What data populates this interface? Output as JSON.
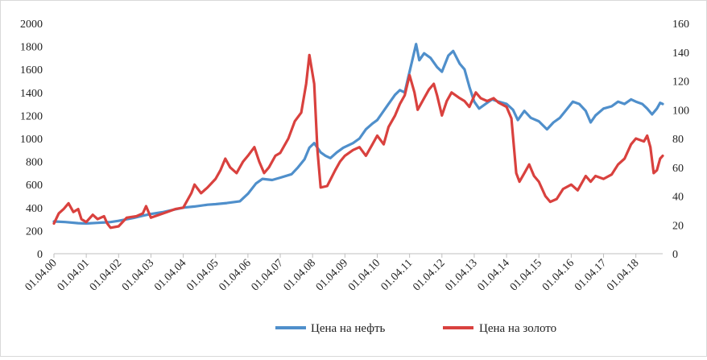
{
  "chart_data": {
    "type": "line",
    "title": "",
    "xlabel": "",
    "ylabel": "",
    "y_left": {
      "min": 0,
      "max": 2000,
      "ticks": [
        "0",
        "200",
        "400",
        "600",
        "800",
        "1000",
        "1200",
        "1400",
        "1600",
        "1800",
        "2000"
      ]
    },
    "y_right": {
      "min": 0,
      "max": 160,
      "ticks": [
        "0",
        "20",
        "40",
        "60",
        "80",
        "100",
        "120",
        "140",
        "160"
      ]
    },
    "x_range": [
      2000.25,
      2019.08
    ],
    "x_ticks": [
      {
        "x": 2000.25,
        "label": "01.04.00"
      },
      {
        "x": 2001.25,
        "label": "01.04.01"
      },
      {
        "x": 2002.25,
        "label": "01.04.02"
      },
      {
        "x": 2003.25,
        "label": "01.04.03"
      },
      {
        "x": 2004.25,
        "label": "01.04.04"
      },
      {
        "x": 2005.25,
        "label": "01.04.05"
      },
      {
        "x": 2006.25,
        "label": "01.04.06"
      },
      {
        "x": 2007.25,
        "label": "01.04.07"
      },
      {
        "x": 2008.25,
        "label": "01.04.08"
      },
      {
        "x": 2009.25,
        "label": "01.04.09"
      },
      {
        "x": 2010.25,
        "label": "01.04.10"
      },
      {
        "x": 2011.25,
        "label": "01.04.11"
      },
      {
        "x": 2012.25,
        "label": "01.04.12"
      },
      {
        "x": 2013.25,
        "label": "01.04.13"
      },
      {
        "x": 2014.25,
        "label": "01.04.14"
      },
      {
        "x": 2015.25,
        "label": "01.04.15"
      },
      {
        "x": 2016.25,
        "label": "01.04.16"
      },
      {
        "x": 2017.25,
        "label": "01.04.17"
      },
      {
        "x": 2018.25,
        "label": "01.04.18"
      }
    ],
    "grid": false,
    "legend_position": "bottom",
    "series": [
      {
        "name": "Цена на нефть",
        "axis": "left",
        "color": "#4f8fcb",
        "points": [
          [
            2000.25,
            280
          ],
          [
            2000.6,
            275
          ],
          [
            2001.0,
            265
          ],
          [
            2001.25,
            262
          ],
          [
            2001.6,
            268
          ],
          [
            2002.0,
            275
          ],
          [
            2002.25,
            285
          ],
          [
            2002.7,
            310
          ],
          [
            2003.0,
            330
          ],
          [
            2003.25,
            345
          ],
          [
            2003.6,
            360
          ],
          [
            2004.0,
            385
          ],
          [
            2004.25,
            400
          ],
          [
            2004.6,
            410
          ],
          [
            2005.0,
            425
          ],
          [
            2005.25,
            430
          ],
          [
            2005.6,
            440
          ],
          [
            2006.0,
            455
          ],
          [
            2006.25,
            520
          ],
          [
            2006.5,
            610
          ],
          [
            2006.7,
            650
          ],
          [
            2007.0,
            640
          ],
          [
            2007.25,
            660
          ],
          [
            2007.6,
            690
          ],
          [
            2007.8,
            750
          ],
          [
            2008.0,
            820
          ],
          [
            2008.15,
            920
          ],
          [
            2008.3,
            960
          ],
          [
            2008.5,
            880
          ],
          [
            2008.65,
            850
          ],
          [
            2008.8,
            830
          ],
          [
            2009.0,
            880
          ],
          [
            2009.2,
            920
          ],
          [
            2009.5,
            960
          ],
          [
            2009.7,
            1000
          ],
          [
            2009.9,
            1080
          ],
          [
            2010.1,
            1130
          ],
          [
            2010.25,
            1160
          ],
          [
            2010.4,
            1220
          ],
          [
            2010.6,
            1300
          ],
          [
            2010.8,
            1380
          ],
          [
            2010.95,
            1420
          ],
          [
            2011.1,
            1400
          ],
          [
            2011.2,
            1520
          ],
          [
            2011.35,
            1700
          ],
          [
            2011.45,
            1820
          ],
          [
            2011.55,
            1680
          ],
          [
            2011.7,
            1740
          ],
          [
            2011.9,
            1700
          ],
          [
            2012.1,
            1620
          ],
          [
            2012.25,
            1580
          ],
          [
            2012.45,
            1720
          ],
          [
            2012.6,
            1760
          ],
          [
            2012.8,
            1650
          ],
          [
            2012.95,
            1600
          ],
          [
            2013.1,
            1450
          ],
          [
            2013.25,
            1320
          ],
          [
            2013.4,
            1260
          ],
          [
            2013.6,
            1300
          ],
          [
            2013.8,
            1340
          ],
          [
            2014.0,
            1320
          ],
          [
            2014.25,
            1300
          ],
          [
            2014.45,
            1250
          ],
          [
            2014.6,
            1160
          ],
          [
            2014.8,
            1240
          ],
          [
            2015.0,
            1180
          ],
          [
            2015.25,
            1150
          ],
          [
            2015.5,
            1080
          ],
          [
            2015.7,
            1140
          ],
          [
            2015.9,
            1180
          ],
          [
            2016.1,
            1250
          ],
          [
            2016.3,
            1320
          ],
          [
            2016.5,
            1300
          ],
          [
            2016.7,
            1240
          ],
          [
            2016.85,
            1140
          ],
          [
            2017.0,
            1200
          ],
          [
            2017.25,
            1260
          ],
          [
            2017.5,
            1280
          ],
          [
            2017.7,
            1320
          ],
          [
            2017.9,
            1300
          ],
          [
            2018.1,
            1340
          ],
          [
            2018.25,
            1320
          ],
          [
            2018.45,
            1300
          ],
          [
            2018.6,
            1260
          ],
          [
            2018.75,
            1210
          ],
          [
            2018.9,
            1260
          ],
          [
            2019.0,
            1310
          ],
          [
            2019.08,
            1300
          ]
        ]
      },
      {
        "name": "Цена на золото",
        "axis": "right",
        "color": "#d9413e",
        "points": [
          [
            2000.25,
            21
          ],
          [
            2000.4,
            28
          ],
          [
            2000.55,
            31
          ],
          [
            2000.7,
            35
          ],
          [
            2000.85,
            29
          ],
          [
            2001.0,
            31
          ],
          [
            2001.1,
            24
          ],
          [
            2001.25,
            22
          ],
          [
            2001.45,
            27
          ],
          [
            2001.6,
            24
          ],
          [
            2001.8,
            26
          ],
          [
            2001.9,
            21
          ],
          [
            2002.0,
            18
          ],
          [
            2002.25,
            19
          ],
          [
            2002.5,
            25
          ],
          [
            2002.8,
            26
          ],
          [
            2003.0,
            28
          ],
          [
            2003.1,
            33
          ],
          [
            2003.25,
            25
          ],
          [
            2003.5,
            27
          ],
          [
            2003.75,
            29
          ],
          [
            2004.0,
            31
          ],
          [
            2004.25,
            32
          ],
          [
            2004.5,
            42
          ],
          [
            2004.6,
            48
          ],
          [
            2004.8,
            42
          ],
          [
            2005.0,
            46
          ],
          [
            2005.25,
            52
          ],
          [
            2005.4,
            58
          ],
          [
            2005.55,
            66
          ],
          [
            2005.7,
            60
          ],
          [
            2005.9,
            56
          ],
          [
            2006.1,
            64
          ],
          [
            2006.25,
            68
          ],
          [
            2006.45,
            74
          ],
          [
            2006.6,
            64
          ],
          [
            2006.75,
            56
          ],
          [
            2006.9,
            60
          ],
          [
            2007.1,
            68
          ],
          [
            2007.25,
            70
          ],
          [
            2007.5,
            80
          ],
          [
            2007.7,
            92
          ],
          [
            2007.9,
            98
          ],
          [
            2008.05,
            118
          ],
          [
            2008.15,
            138
          ],
          [
            2008.3,
            118
          ],
          [
            2008.4,
            72
          ],
          [
            2008.5,
            46
          ],
          [
            2008.7,
            47
          ],
          [
            2008.95,
            58
          ],
          [
            2009.1,
            64
          ],
          [
            2009.25,
            68
          ],
          [
            2009.5,
            72
          ],
          [
            2009.7,
            74
          ],
          [
            2009.9,
            68
          ],
          [
            2010.1,
            76
          ],
          [
            2010.25,
            82
          ],
          [
            2010.45,
            76
          ],
          [
            2010.6,
            88
          ],
          [
            2010.8,
            96
          ],
          [
            2010.95,
            104
          ],
          [
            2011.1,
            110
          ],
          [
            2011.25,
            124
          ],
          [
            2011.4,
            112
          ],
          [
            2011.5,
            100
          ],
          [
            2011.7,
            108
          ],
          [
            2011.85,
            114
          ],
          [
            2012.0,
            118
          ],
          [
            2012.1,
            110
          ],
          [
            2012.25,
            96
          ],
          [
            2012.4,
            106
          ],
          [
            2012.55,
            112
          ],
          [
            2012.8,
            108
          ],
          [
            2012.95,
            106
          ],
          [
            2013.1,
            102
          ],
          [
            2013.3,
            112
          ],
          [
            2013.45,
            108
          ],
          [
            2013.65,
            106
          ],
          [
            2013.85,
            108
          ],
          [
            2014.0,
            105
          ],
          [
            2014.25,
            102
          ],
          [
            2014.4,
            94
          ],
          [
            2014.55,
            56
          ],
          [
            2014.65,
            50
          ],
          [
            2014.8,
            56
          ],
          [
            2014.95,
            62
          ],
          [
            2015.1,
            54
          ],
          [
            2015.25,
            50
          ],
          [
            2015.45,
            40
          ],
          [
            2015.6,
            36
          ],
          [
            2015.8,
            38
          ],
          [
            2016.0,
            45
          ],
          [
            2016.25,
            48
          ],
          [
            2016.45,
            44
          ],
          [
            2016.7,
            54
          ],
          [
            2016.85,
            50
          ],
          [
            2017.0,
            54
          ],
          [
            2017.25,
            52
          ],
          [
            2017.5,
            55
          ],
          [
            2017.7,
            62
          ],
          [
            2017.9,
            66
          ],
          [
            2018.1,
            76
          ],
          [
            2018.25,
            80
          ],
          [
            2018.5,
            78
          ],
          [
            2018.6,
            82
          ],
          [
            2018.7,
            74
          ],
          [
            2018.8,
            56
          ],
          [
            2018.9,
            58
          ],
          [
            2019.0,
            66
          ],
          [
            2019.08,
            68
          ]
        ]
      }
    ]
  }
}
